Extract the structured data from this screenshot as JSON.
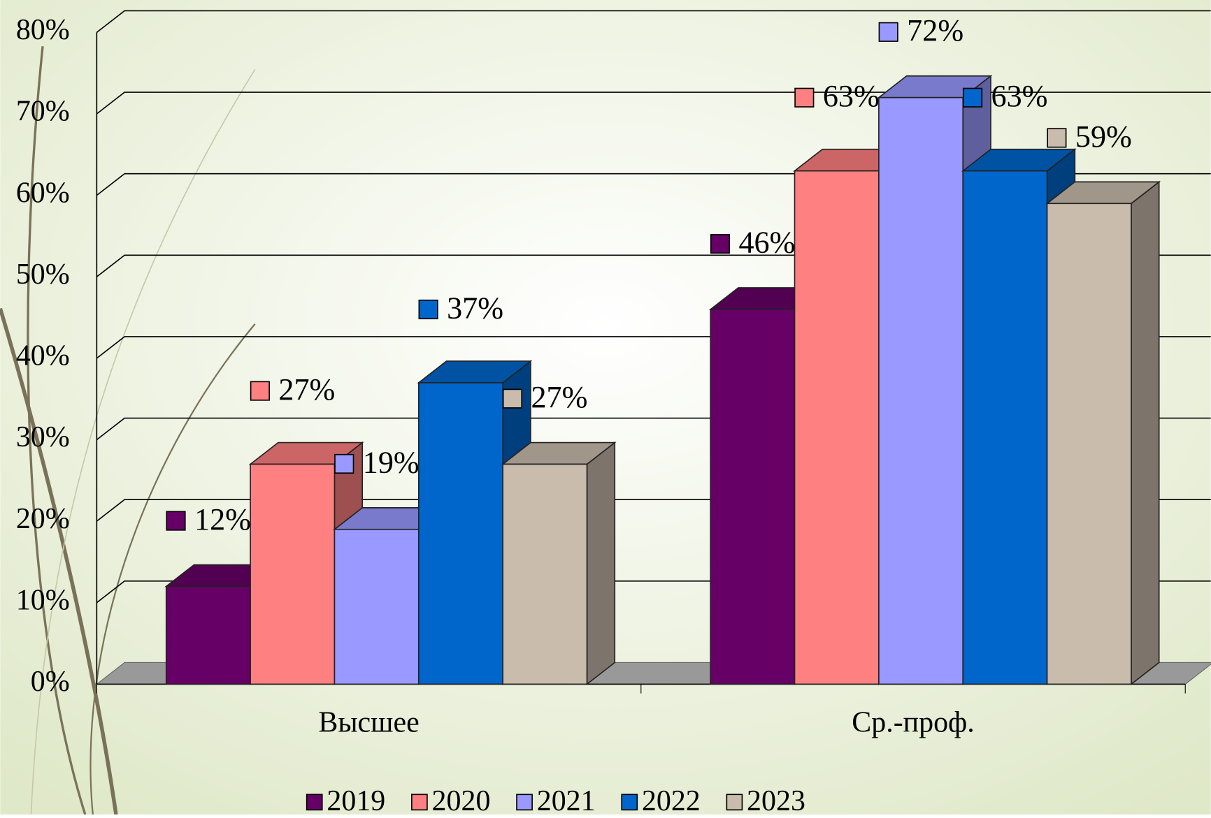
{
  "chart_data": {
    "type": "bar3d",
    "categories": [
      "Высшее",
      "Ср.-проф."
    ],
    "series": [
      {
        "name": "2019",
        "color": "#660066",
        "values": [
          12,
          46
        ],
        "value_labels": [
          "12%",
          "46%"
        ]
      },
      {
        "name": "2020",
        "color": "#ff8080",
        "values": [
          27,
          63
        ],
        "value_labels": [
          "27%",
          "63%"
        ]
      },
      {
        "name": "2021",
        "color": "#9999ff",
        "values": [
          19,
          72
        ],
        "value_labels": [
          "19%",
          "72%"
        ]
      },
      {
        "name": "2022",
        "color": "#0066cc",
        "values": [
          37,
          63
        ],
        "value_labels": [
          "37%",
          "63%"
        ]
      },
      {
        "name": "2023",
        "color": "#c9bcac",
        "values": [
          27,
          59
        ],
        "value_labels": [
          "27%",
          "59%"
        ]
      }
    ],
    "ylim": [
      0,
      80
    ],
    "yticks": [
      {
        "value": 0,
        "label": "0%"
      },
      {
        "value": 10,
        "label": "10%"
      },
      {
        "value": 20,
        "label": "20%"
      },
      {
        "value": 30,
        "label": "30%"
      },
      {
        "value": 40,
        "label": "40%"
      },
      {
        "value": 50,
        "label": "50%"
      },
      {
        "value": 60,
        "label": "60%"
      },
      {
        "value": 70,
        "label": "70%"
      },
      {
        "value": 80,
        "label": "80%"
      }
    ],
    "grid": true,
    "legend": "bottom"
  }
}
